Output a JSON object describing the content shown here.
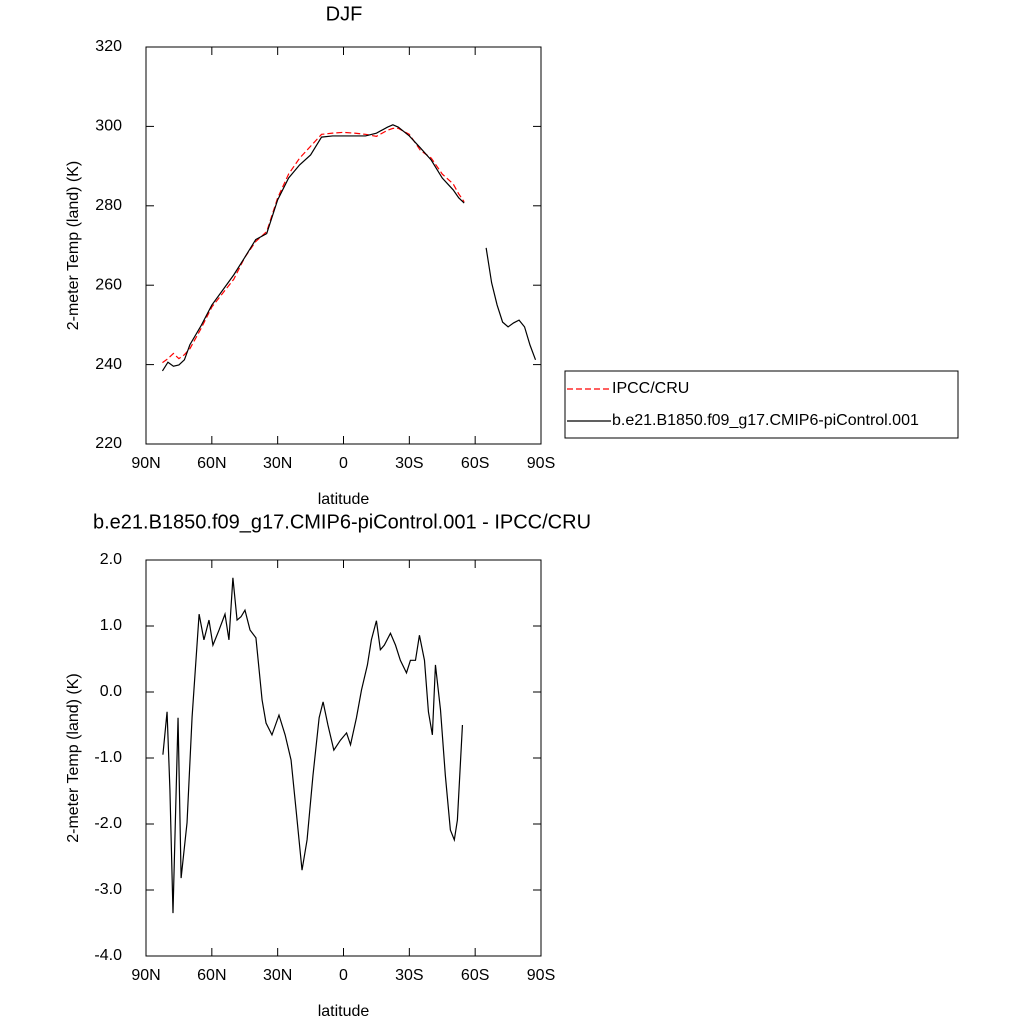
{
  "chart_data": [
    {
      "type": "line",
      "title": "DJF",
      "x_label": "latitude",
      "y_label": "2-meter Temp (land) (K)",
      "x": [
        82.5,
        80,
        77.5,
        75,
        72.5,
        70,
        65,
        60,
        55,
        50,
        45,
        40,
        35,
        30,
        25,
        20,
        15,
        10,
        5,
        0,
        -5,
        -10,
        -15,
        -20,
        -22.5,
        -25,
        -30,
        -35,
        -40,
        -45,
        -50,
        -52.5,
        -55,
        -57.5,
        -60,
        -62.5,
        -65,
        -67.5,
        -70,
        -72.5,
        -75,
        -77.5,
        -80,
        -82.5,
        -85,
        -87.5
      ],
      "series": [
        {
          "name": "IPCC/CRU",
          "color": "#ff0000",
          "dashed": true,
          "values": [
            240.5,
            241.5,
            242.8,
            241.5,
            242.5,
            244,
            249,
            254.5,
            258,
            261.5,
            267,
            271,
            273.5,
            282,
            288,
            292,
            295,
            298,
            298.3,
            298.5,
            298.3,
            298,
            297.5,
            299,
            299.5,
            299.5,
            298,
            294,
            292,
            288,
            285.5,
            283,
            281,
            null,
            null,
            null,
            null,
            null,
            null,
            null,
            null,
            null,
            null,
            null,
            null,
            null
          ]
        },
        {
          "name": "b.e21.B1850.f09_g17.CMIP6-piControl.001",
          "color": "#000000",
          "dashed": false,
          "values": [
            238.4,
            240.6,
            239.6,
            239.9,
            241.2,
            245,
            249.7,
            255,
            258.8,
            262.6,
            267,
            271.5,
            273,
            281.5,
            287,
            290.3,
            292.8,
            297.3,
            297.6,
            297.6,
            297.6,
            297.6,
            298.3,
            299.8,
            300.4,
            299.8,
            297.6,
            294.6,
            291.5,
            287,
            284,
            282,
            280.7,
            null,
            null,
            null,
            269.4,
            260.6,
            255,
            250.7,
            249.5,
            250.5,
            251.2,
            249.5,
            244.9,
            241.2
          ]
        }
      ],
      "xlim": [
        90,
        -90
      ],
      "xticks": [
        {
          "value": 90,
          "label": "90N"
        },
        {
          "value": 60,
          "label": "60N"
        },
        {
          "value": 30,
          "label": "30N"
        },
        0,
        {
          "value": -30,
          "label": "30S"
        },
        {
          "value": -60,
          "label": "60S"
        },
        {
          "value": -90,
          "label": "90S"
        }
      ],
      "ylim": [
        220,
        320
      ],
      "yticks": [
        220,
        240,
        260,
        280,
        300,
        320
      ],
      "legend": "right"
    },
    {
      "type": "line",
      "title": "b.e21.B1850.f09_g17.CMIP6-piControl.001 - IPCC/CRU",
      "x_label": "latitude",
      "y_label": "2-meter Temp (land) (K)",
      "x": [
        82.3,
        80.4,
        79.1,
        77.7,
        75.4,
        74,
        71.3,
        69,
        65.8,
        63.6,
        61.3,
        59.5,
        56.7,
        54,
        52.2,
        50.4,
        48.5,
        46.7,
        44.9,
        42.6,
        39.9,
        37.1,
        35.3,
        32.6,
        29.4,
        26.6,
        23.9,
        21.6,
        18.9,
        16.6,
        13.9,
        11.1,
        9.3,
        7.1,
        4.4,
        1.4,
        -1.4,
        -3.2,
        -5.9,
        -8.2,
        -10.9,
        -12.7,
        -15,
        -16.8,
        -18.6,
        -21.4,
        -23.7,
        -25.9,
        -28.7,
        -30.5,
        -32.8,
        -34.6,
        -36.9,
        -38.7,
        -40.5,
        -41.9,
        -44.2,
        -46.4,
        -48.7,
        -50.5,
        -51.9,
        -54.2
      ],
      "values": [
        -0.95,
        -0.3,
        -1.48,
        -3.35,
        -0.39,
        -2.82,
        -1.98,
        -0.38,
        1.18,
        0.79,
        1.09,
        0.71,
        0.94,
        1.18,
        0.79,
        1.73,
        1.09,
        1.14,
        1.24,
        0.94,
        0.82,
        -0.12,
        -0.47,
        -0.65,
        -0.35,
        -0.65,
        -1.03,
        -1.79,
        -2.7,
        -2.24,
        -1.26,
        -0.39,
        -0.15,
        -0.5,
        -0.88,
        -0.73,
        -0.62,
        -0.8,
        -0.39,
        0.03,
        0.41,
        0.79,
        1.08,
        0.64,
        0.71,
        0.89,
        0.71,
        0.48,
        0.29,
        0.48,
        0.48,
        0.86,
        0.48,
        -0.3,
        -0.65,
        0.41,
        -0.27,
        -1.26,
        -2.09,
        -2.24,
        -1.94,
        -0.5
      ],
      "color": "#000000",
      "xlim": [
        90,
        -90
      ],
      "xticks": [
        {
          "value": 90,
          "label": "90N"
        },
        {
          "value": 60,
          "label": "60N"
        },
        {
          "value": 30,
          "label": "30N"
        },
        0,
        {
          "value": -30,
          "label": "30S"
        },
        {
          "value": -60,
          "label": "60S"
        },
        {
          "value": -90,
          "label": "90S"
        }
      ],
      "ylim": [
        -4,
        2
      ],
      "yticks": [
        {
          "value": -4,
          "label": "-4.0"
        },
        {
          "value": -3,
          "label": "-3.0"
        },
        {
          "value": -2,
          "label": "-2.0"
        },
        {
          "value": -1,
          "label": "-1.0"
        },
        {
          "value": 0,
          "label": "0.0"
        },
        {
          "value": 1,
          "label": "1.0"
        },
        {
          "value": 2,
          "label": "2.0"
        }
      ]
    }
  ]
}
